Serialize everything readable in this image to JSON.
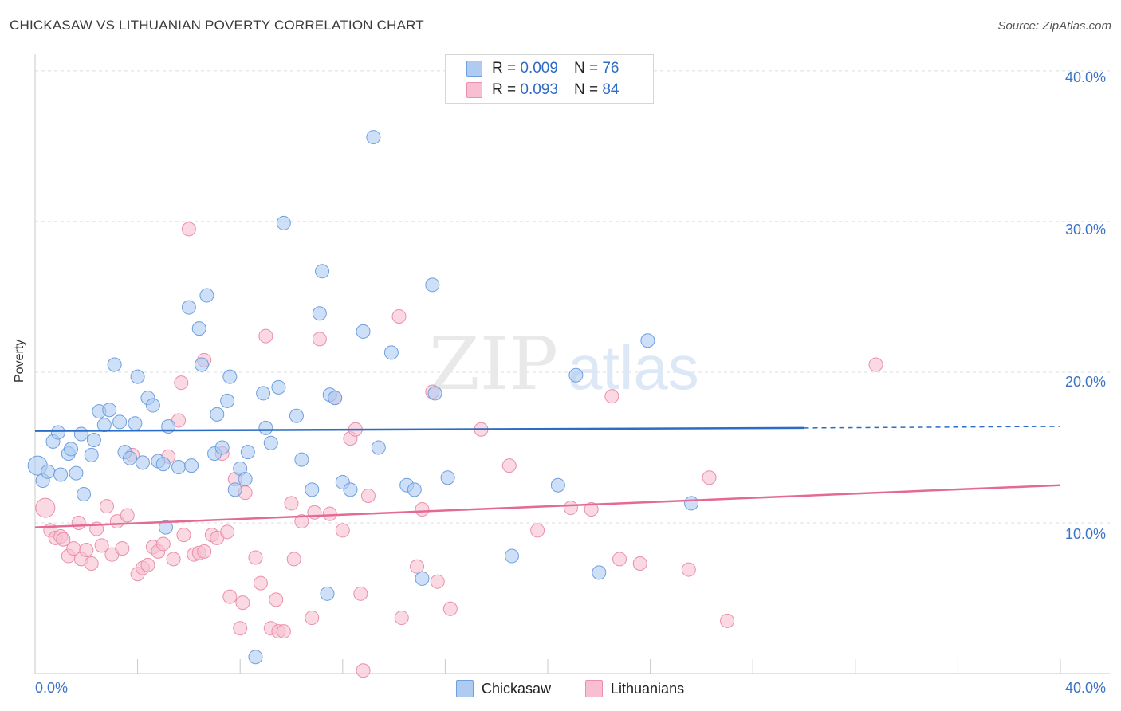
{
  "header": {
    "title": "CHICKASAW VS LITHUANIAN POVERTY CORRELATION CHART",
    "source": "Source: ZipAtlas.com"
  },
  "watermark": "ZIPatlas",
  "legend": {
    "rows": [
      {
        "r_label": "R =",
        "r_value": "0.009",
        "n_label": "N =",
        "n_value": "76"
      },
      {
        "r_label": "R =",
        "r_value": "0.093",
        "n_label": "N =",
        "n_value": "84"
      }
    ],
    "series_names": [
      "Chickasaw",
      "Lithuanians"
    ]
  },
  "axes": {
    "ylabel": "Poverty",
    "y_ticks": [
      "10.0%",
      "20.0%",
      "30.0%",
      "40.0%"
    ],
    "x_min_label": "0.0%",
    "x_max_label": "40.0%"
  },
  "colors": {
    "chickasaw_fill": "#aecbf2",
    "chickasaw_stroke": "#6f9fde",
    "chickasaw_line": "#2b6cc4",
    "lithuanian_fill": "#f7bfd1",
    "lithuanian_stroke": "#ea8fac",
    "lithuanian_line": "#e46a93",
    "tick_text": "#3b73c8"
  },
  "chart_data": {
    "type": "scatter",
    "xlim": [
      0,
      40
    ],
    "ylim": [
      0,
      41
    ],
    "grid": true,
    "series": [
      {
        "name": "Chickasaw",
        "trend": {
          "x0": 0,
          "y0": 16.1,
          "x1": 30,
          "y1": 16.3,
          "dashed_to": 40,
          "dashed_y": 16.4
        },
        "points": [
          [
            0.1,
            13.8
          ],
          [
            0.3,
            12.8
          ],
          [
            0.5,
            13.4
          ],
          [
            0.7,
            15.4
          ],
          [
            0.9,
            16.0
          ],
          [
            1.0,
            13.2
          ],
          [
            1.3,
            14.6
          ],
          [
            1.4,
            14.9
          ],
          [
            1.6,
            13.3
          ],
          [
            1.8,
            15.9
          ],
          [
            1.9,
            11.9
          ],
          [
            2.2,
            14.5
          ],
          [
            2.3,
            15.5
          ],
          [
            2.5,
            17.4
          ],
          [
            2.7,
            16.5
          ],
          [
            2.9,
            17.5
          ],
          [
            3.1,
            20.5
          ],
          [
            3.3,
            16.7
          ],
          [
            3.5,
            14.7
          ],
          [
            3.7,
            14.3
          ],
          [
            3.9,
            16.6
          ],
          [
            4.0,
            19.7
          ],
          [
            4.2,
            14.0
          ],
          [
            4.4,
            18.3
          ],
          [
            4.6,
            17.8
          ],
          [
            4.8,
            14.1
          ],
          [
            5.0,
            13.9
          ],
          [
            5.1,
            9.7
          ],
          [
            5.2,
            16.4
          ],
          [
            5.6,
            13.7
          ],
          [
            6.0,
            24.3
          ],
          [
            6.1,
            13.8
          ],
          [
            6.4,
            22.9
          ],
          [
            6.5,
            20.5
          ],
          [
            6.7,
            25.1
          ],
          [
            7.0,
            14.6
          ],
          [
            7.1,
            17.2
          ],
          [
            7.3,
            15.0
          ],
          [
            7.5,
            18.1
          ],
          [
            7.6,
            19.7
          ],
          [
            7.8,
            12.2
          ],
          [
            8.0,
            13.6
          ],
          [
            8.2,
            12.9
          ],
          [
            8.3,
            14.7
          ],
          [
            8.6,
            1.1
          ],
          [
            8.9,
            18.6
          ],
          [
            9.0,
            16.3
          ],
          [
            9.2,
            15.3
          ],
          [
            9.5,
            19.0
          ],
          [
            9.7,
            29.9
          ],
          [
            10.2,
            17.1
          ],
          [
            10.8,
            12.2
          ],
          [
            10.4,
            14.2
          ],
          [
            11.1,
            23.9
          ],
          [
            11.2,
            26.7
          ],
          [
            11.5,
            18.5
          ],
          [
            11.7,
            18.3
          ],
          [
            12.0,
            12.7
          ],
          [
            12.3,
            12.2
          ],
          [
            12.8,
            22.7
          ],
          [
            13.2,
            35.6
          ],
          [
            13.4,
            15.0
          ],
          [
            13.9,
            21.3
          ],
          [
            14.5,
            12.5
          ],
          [
            14.8,
            12.2
          ],
          [
            15.1,
            6.3
          ],
          [
            15.5,
            25.8
          ],
          [
            15.6,
            18.6
          ],
          [
            16.1,
            13.0
          ],
          [
            11.4,
            5.3
          ],
          [
            18.6,
            7.8
          ],
          [
            20.4,
            12.5
          ],
          [
            21.1,
            19.8
          ],
          [
            22.0,
            6.7
          ],
          [
            23.9,
            22.1
          ],
          [
            25.6,
            11.3
          ]
        ]
      },
      {
        "name": "Lithuanians",
        "trend": {
          "x0": 0,
          "y0": 9.7,
          "x1": 40,
          "y1": 12.5
        },
        "points": [
          [
            0.4,
            11.0
          ],
          [
            0.6,
            9.5
          ],
          [
            0.8,
            9.0
          ],
          [
            1.0,
            9.1
          ],
          [
            1.1,
            8.9
          ],
          [
            1.3,
            7.8
          ],
          [
            1.5,
            8.3
          ],
          [
            1.7,
            10.0
          ],
          [
            1.8,
            7.6
          ],
          [
            2.0,
            8.2
          ],
          [
            2.2,
            7.3
          ],
          [
            2.4,
            9.6
          ],
          [
            2.6,
            8.5
          ],
          [
            2.8,
            11.1
          ],
          [
            3.0,
            7.9
          ],
          [
            3.2,
            10.1
          ],
          [
            3.4,
            8.3
          ],
          [
            3.6,
            10.5
          ],
          [
            3.8,
            14.5
          ],
          [
            4.0,
            6.6
          ],
          [
            4.2,
            7.0
          ],
          [
            4.4,
            7.2
          ],
          [
            4.6,
            8.4
          ],
          [
            4.8,
            8.1
          ],
          [
            5.0,
            8.6
          ],
          [
            5.2,
            14.4
          ],
          [
            5.4,
            7.6
          ],
          [
            5.6,
            16.8
          ],
          [
            5.7,
            19.3
          ],
          [
            5.8,
            9.2
          ],
          [
            6.0,
            29.5
          ],
          [
            6.2,
            7.9
          ],
          [
            6.4,
            8.0
          ],
          [
            6.6,
            8.1
          ],
          [
            6.6,
            20.8
          ],
          [
            6.9,
            9.2
          ],
          [
            7.1,
            9.0
          ],
          [
            7.3,
            14.6
          ],
          [
            7.5,
            9.4
          ],
          [
            7.6,
            5.1
          ],
          [
            7.8,
            12.9
          ],
          [
            8.0,
            3.0
          ],
          [
            8.1,
            4.7
          ],
          [
            8.2,
            12.0
          ],
          [
            8.6,
            7.7
          ],
          [
            8.8,
            6.0
          ],
          [
            9.0,
            22.4
          ],
          [
            9.2,
            3.0
          ],
          [
            9.4,
            4.9
          ],
          [
            9.5,
            2.8
          ],
          [
            9.7,
            2.8
          ],
          [
            10.0,
            11.3
          ],
          [
            10.1,
            7.6
          ],
          [
            10.4,
            10.1
          ],
          [
            10.8,
            3.7
          ],
          [
            10.9,
            10.7
          ],
          [
            11.1,
            22.2
          ],
          [
            11.5,
            10.6
          ],
          [
            11.7,
            18.3
          ],
          [
            12.0,
            9.5
          ],
          [
            12.3,
            15.6
          ],
          [
            12.5,
            16.2
          ],
          [
            12.7,
            5.3
          ],
          [
            12.8,
            0.2
          ],
          [
            13.0,
            11.8
          ],
          [
            14.2,
            23.7
          ],
          [
            14.3,
            3.7
          ],
          [
            14.9,
            7.1
          ],
          [
            15.1,
            10.9
          ],
          [
            15.5,
            18.7
          ],
          [
            15.7,
            6.1
          ],
          [
            16.2,
            4.3
          ],
          [
            17.4,
            16.2
          ],
          [
            18.5,
            13.8
          ],
          [
            19.6,
            9.5
          ],
          [
            20.9,
            11.0
          ],
          [
            21.7,
            10.9
          ],
          [
            22.5,
            18.4
          ],
          [
            22.8,
            7.6
          ],
          [
            23.6,
            7.3
          ],
          [
            25.5,
            6.9
          ],
          [
            26.3,
            13.0
          ],
          [
            27.0,
            3.5
          ],
          [
            32.8,
            20.5
          ]
        ]
      }
    ]
  }
}
